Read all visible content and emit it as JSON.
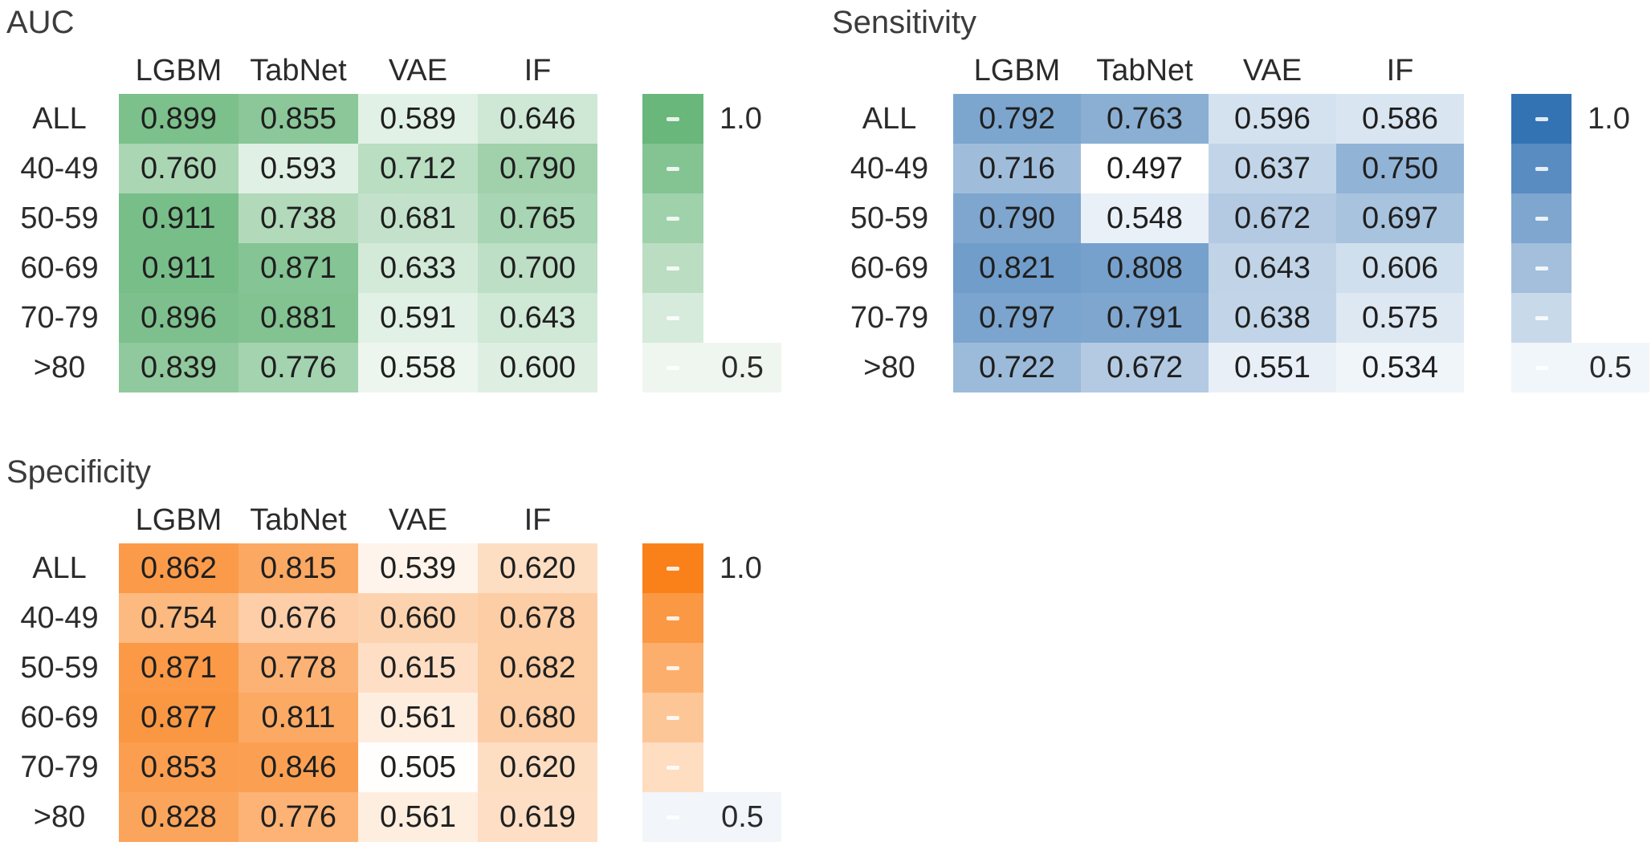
{
  "figure": {
    "background": "#ffffff",
    "value_range_labels": {
      "top": "1.0",
      "bottom": "0.5"
    }
  },
  "chart_data": [
    {
      "type": "heatmap",
      "title": "AUC",
      "columns": [
        "LGBM",
        "TabNet",
        "VAE",
        "IF"
      ],
      "rows": [
        "ALL",
        "40-49",
        "50-59",
        "60-69",
        "70-79",
        ">80"
      ],
      "values": [
        [
          0.899,
          0.855,
          0.589,
          0.646
        ],
        [
          0.76,
          0.593,
          0.712,
          0.79
        ],
        [
          0.911,
          0.738,
          0.681,
          0.765
        ],
        [
          0.911,
          0.871,
          0.633,
          0.7
        ],
        [
          0.896,
          0.881,
          0.591,
          0.643
        ],
        [
          0.839,
          0.776,
          0.558,
          0.6
        ]
      ],
      "value_decimals": 3,
      "colorbar": {
        "min": 0.5,
        "max": 1.0,
        "min_label": "0.5",
        "max_label": "1.0",
        "bins": 6,
        "position": "right"
      },
      "colors": {
        "min": "#ffffff",
        "max": "#5bb06f",
        "label_box": "#eff6f0",
        "text": "#1f1f1f"
      }
    },
    {
      "type": "heatmap",
      "title": "Sensitivity",
      "columns": [
        "LGBM",
        "TabNet",
        "VAE",
        "IF"
      ],
      "rows": [
        "ALL",
        "40-49",
        "50-59",
        "60-69",
        "70-79",
        ">80"
      ],
      "values": [
        [
          0.792,
          0.763,
          0.596,
          0.586
        ],
        [
          0.716,
          0.497,
          0.637,
          0.75
        ],
        [
          0.79,
          0.548,
          0.672,
          0.697
        ],
        [
          0.821,
          0.808,
          0.643,
          0.606
        ],
        [
          0.797,
          0.791,
          0.638,
          0.575
        ],
        [
          0.722,
          0.672,
          0.551,
          0.534
        ]
      ],
      "value_decimals": 3,
      "colorbar": {
        "min": 0.5,
        "max": 1.0,
        "min_label": "0.5",
        "max_label": "1.0",
        "bins": 6,
        "position": "right"
      },
      "colors": {
        "min": "#ffffff",
        "max": "#2166ac",
        "label_box": "#f1f6fa",
        "text": "#1f1f1f"
      }
    },
    {
      "type": "heatmap",
      "title": "Specificity",
      "columns": [
        "LGBM",
        "TabNet",
        "VAE",
        "IF"
      ],
      "rows": [
        "ALL",
        "40-49",
        "50-59",
        "60-69",
        "70-79",
        ">80"
      ],
      "values": [
        [
          0.862,
          0.815,
          0.539,
          0.62
        ],
        [
          0.754,
          0.676,
          0.66,
          0.678
        ],
        [
          0.871,
          0.778,
          0.615,
          0.682
        ],
        [
          0.877,
          0.811,
          0.561,
          0.68
        ],
        [
          0.853,
          0.846,
          0.505,
          0.62
        ],
        [
          0.828,
          0.776,
          0.561,
          0.619
        ]
      ],
      "value_decimals": 3,
      "colorbar": {
        "min": 0.5,
        "max": 1.0,
        "min_label": "0.5",
        "max_label": "1.0",
        "bins": 6,
        "position": "right"
      },
      "colors": {
        "min": "#ffffff",
        "max": "#f97505",
        "label_box": "#f2f5f9",
        "text": "#1f1f1f"
      }
    }
  ]
}
